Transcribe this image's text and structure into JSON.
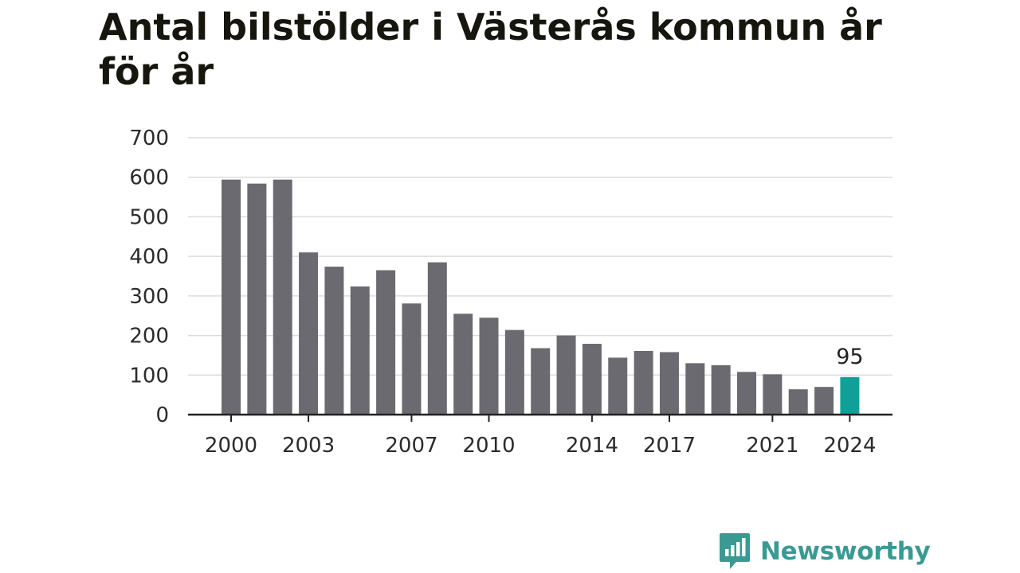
{
  "title": "Antal bilstölder i Västerås kommun år för år",
  "brand": {
    "name": "Newsworthy",
    "icon": "newsworthy-logo-icon",
    "color": "#3a9a93"
  },
  "colors": {
    "bar": "#6b6a70",
    "highlight": "#10a099",
    "grid": "#dcdcdc",
    "axis": "#222222"
  },
  "chart_data": {
    "type": "bar",
    "x": [
      2000,
      2001,
      2002,
      2003,
      2004,
      2005,
      2006,
      2007,
      2008,
      2009,
      2010,
      2011,
      2012,
      2013,
      2014,
      2015,
      2016,
      2017,
      2018,
      2019,
      2020,
      2021,
      2022,
      2023,
      2024
    ],
    "values": [
      594,
      584,
      594,
      410,
      374,
      324,
      365,
      281,
      385,
      255,
      245,
      214,
      168,
      200,
      179,
      144,
      161,
      158,
      130,
      125,
      108,
      102,
      64,
      70,
      95
    ],
    "highlight_index": 24,
    "data_labels": [
      {
        "index": 24,
        "text": "95"
      }
    ],
    "x_tick_labels": [
      "2000",
      "2003",
      "2007",
      "2010",
      "2014",
      "2017",
      "2021",
      "2024"
    ],
    "y_ticks": [
      0,
      100,
      200,
      300,
      400,
      500,
      600,
      700
    ],
    "ylim": [
      0,
      700
    ],
    "grid": true,
    "legend": "none",
    "xlabel": "",
    "ylabel": ""
  }
}
